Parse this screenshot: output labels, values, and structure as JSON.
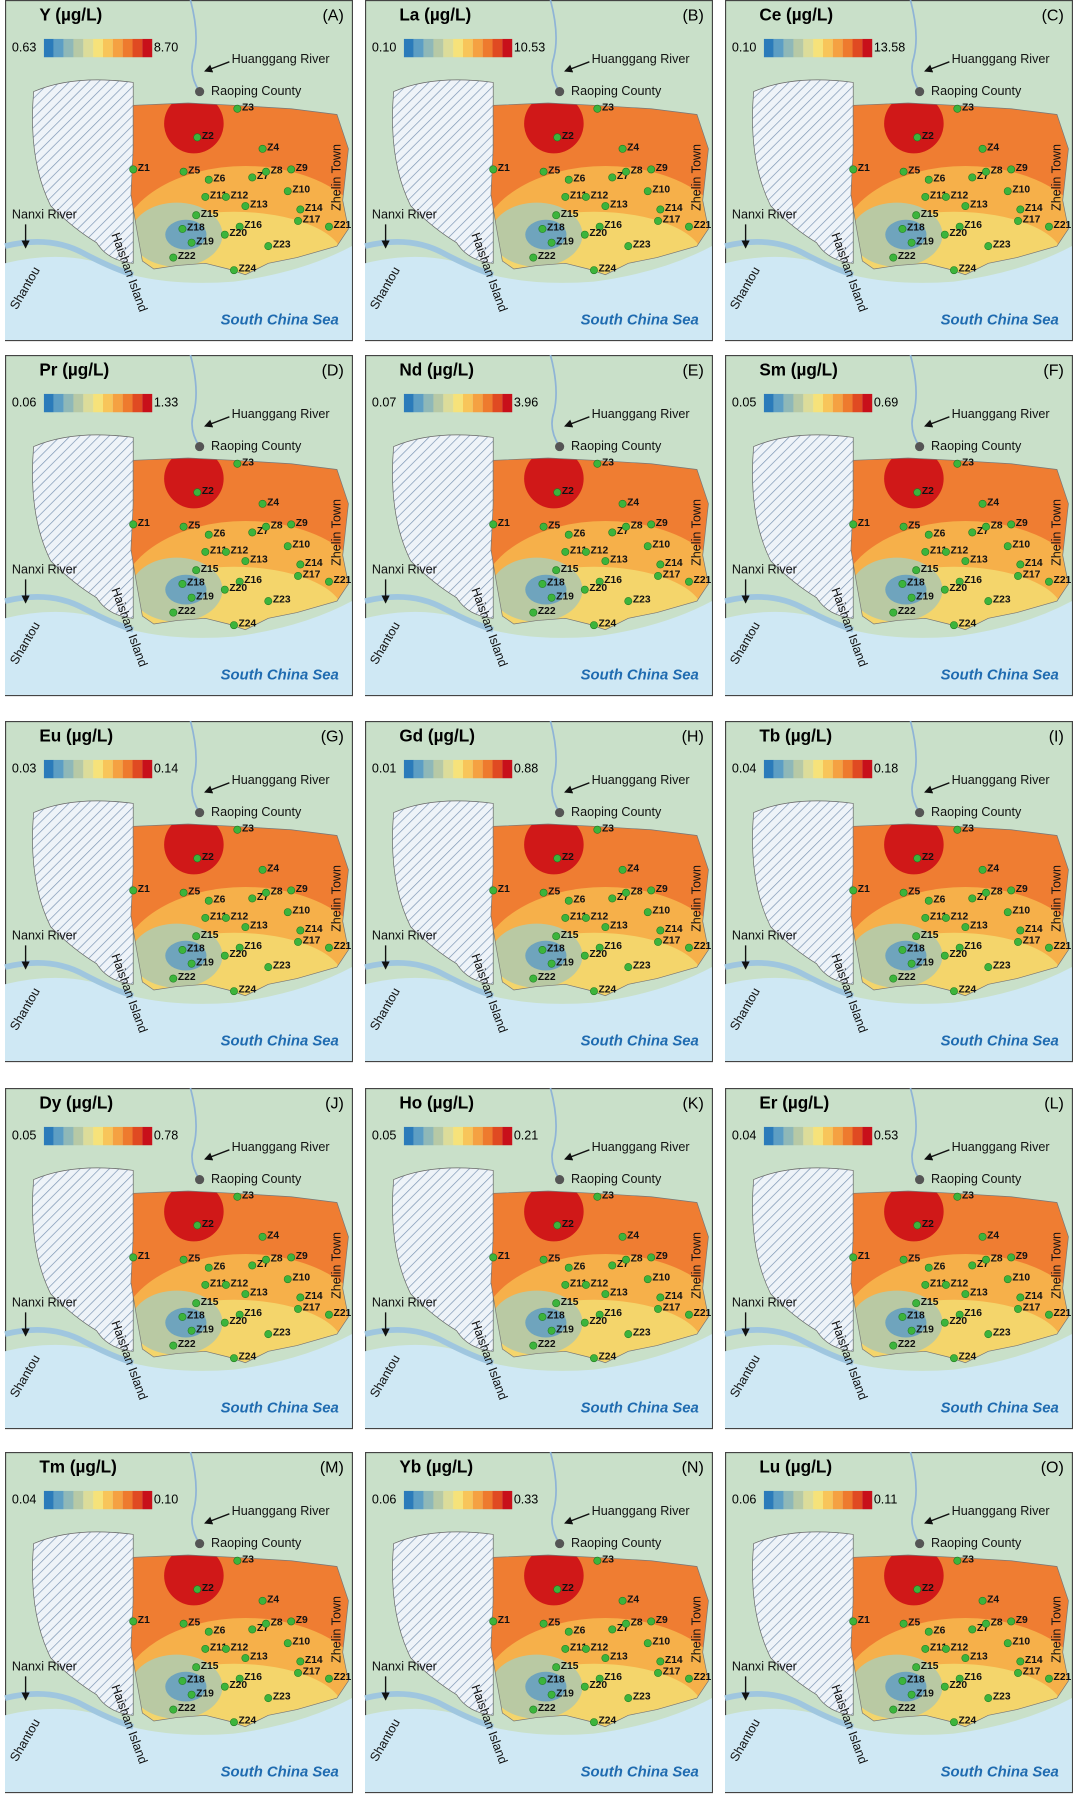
{
  "panels": [
    {
      "title": "Y (µg/L)",
      "letter": "(A)",
      "min": "0.63",
      "max": "8.70"
    },
    {
      "title": "La (µg/L)",
      "letter": "(B)",
      "min": "0.10",
      "max": "10.53"
    },
    {
      "title": "Ce (µg/L)",
      "letter": "(C)",
      "min": "0.10",
      "max": "13.58"
    },
    {
      "title": "Pr (µg/L)",
      "letter": "(D)",
      "min": "0.06",
      "max": "1.33"
    },
    {
      "title": "Nd (µg/L)",
      "letter": "(E)",
      "min": "0.07",
      "max": "3.96"
    },
    {
      "title": "Sm (µg/L)",
      "letter": "(F)",
      "min": "0.05",
      "max": "0.69"
    },
    {
      "title": "Eu (µg/L)",
      "letter": "(G)",
      "min": "0.03",
      "max": "0.14"
    },
    {
      "title": "Gd (µg/L)",
      "letter": "(H)",
      "min": "0.01",
      "max": "0.88"
    },
    {
      "title": "Tb (µg/L)",
      "letter": "(I)",
      "min": "0.04",
      "max": "0.18"
    },
    {
      "title": "Dy (µg/L)",
      "letter": "(J)",
      "min": "0.05",
      "max": "0.78"
    },
    {
      "title": "Ho (µg/L)",
      "letter": "(K)",
      "min": "0.05",
      "max": "0.21"
    },
    {
      "title": "Er (µg/L)",
      "letter": "(L)",
      "min": "0.04",
      "max": "0.53"
    },
    {
      "title": "Tm (µg/L)",
      "letter": "(M)",
      "min": "0.04",
      "max": "0.10"
    },
    {
      "title": "Yb (µg/L)",
      "letter": "(N)",
      "min": "0.06",
      "max": "0.33"
    },
    {
      "title": "Lu (µg/L)",
      "letter": "(O)",
      "min": "0.06",
      "max": "0.11"
    }
  ],
  "places": {
    "river_north": "Huanggang River",
    "county": "Raoping County",
    "town": "Zhelin Town",
    "river_west": "Nanxi River",
    "city": "Shantou",
    "island": "Haishan Island",
    "sea": "South China Sea"
  },
  "sites": [
    "Z1",
    "Z2",
    "Z3",
    "Z4",
    "Z5",
    "Z6",
    "Z7",
    "Z8",
    "Z9",
    "Z10",
    "Z11",
    "Z12",
    "Z13",
    "Z14",
    "Z15",
    "Z16",
    "Z17",
    "Z18",
    "Z19",
    "Z20",
    "Z21",
    "Z22",
    "Z23",
    "Z24"
  ]
}
